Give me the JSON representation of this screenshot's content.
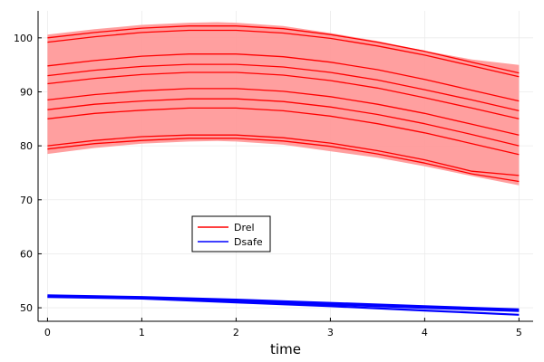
{
  "chart_data": {
    "type": "line",
    "title": "",
    "xlabel": "time",
    "ylabel": "",
    "xlim": [
      -0.1,
      5.15
    ],
    "ylim": [
      47.5,
      105
    ],
    "xticks": [
      0,
      1,
      2,
      3,
      4,
      5
    ],
    "yticks": [
      50,
      60,
      70,
      80,
      90,
      100
    ],
    "grid": true,
    "legend_position": "center-left",
    "band": {
      "name": "Drel",
      "color": "#ff9a9a",
      "x": [
        0,
        0.5,
        1,
        1.5,
        1.8,
        2,
        2.5,
        3,
        3.5,
        4,
        4.5,
        5
      ],
      "upper": [
        100.6,
        101.6,
        102.4,
        102.8,
        102.9,
        102.8,
        102.2,
        100.9,
        99.4,
        97.6,
        96.0,
        95.0
      ],
      "lower": [
        78.5,
        79.6,
        80.4,
        80.8,
        80.9,
        80.8,
        80.2,
        79.0,
        77.8,
        76.2,
        74.4,
        72.7
      ]
    },
    "series": [
      {
        "name": "Drel",
        "color": "#ff0000",
        "x": [
          0,
          0.5,
          1,
          1.5,
          2,
          2.5,
          3,
          3.5,
          4,
          4.5,
          5
        ],
        "lines": [
          [
            100.0,
            101.0,
            101.8,
            102.2,
            102.2,
            101.7,
            100.6,
            99.2,
            97.5,
            95.5,
            93.5
          ],
          [
            99.2,
            100.2,
            101.0,
            101.4,
            101.4,
            100.9,
            99.9,
            98.5,
            96.8,
            94.8,
            92.8
          ],
          [
            94.8,
            95.8,
            96.6,
            97.0,
            97.0,
            96.5,
            95.5,
            94.1,
            92.3,
            90.3,
            88.3
          ],
          [
            93.0,
            94.0,
            94.7,
            95.1,
            95.1,
            94.6,
            93.6,
            92.2,
            90.4,
            88.5,
            86.5
          ],
          [
            91.5,
            92.5,
            93.2,
            93.6,
            93.6,
            93.1,
            92.1,
            90.7,
            88.9,
            87.0,
            85.0
          ],
          [
            88.5,
            89.5,
            90.2,
            90.6,
            90.6,
            90.1,
            89.1,
            87.7,
            86.0,
            84.0,
            82.0
          ],
          [
            86.7,
            87.7,
            88.3,
            88.7,
            88.7,
            88.2,
            87.2,
            85.8,
            84.1,
            82.1,
            80.0
          ],
          [
            85.0,
            86.0,
            86.6,
            87.0,
            87.0,
            86.5,
            85.5,
            84.1,
            82.4,
            80.4,
            78.4
          ],
          [
            80.0,
            81.0,
            81.7,
            82.0,
            82.0,
            81.5,
            80.5,
            79.1,
            77.4,
            75.3,
            74.5
          ],
          [
            79.4,
            80.4,
            81.0,
            81.4,
            81.4,
            80.9,
            79.9,
            78.5,
            76.8,
            74.8,
            73.4
          ]
        ]
      },
      {
        "name": "Dsafe",
        "color": "#0000ff",
        "x": [
          0,
          1,
          2,
          3,
          4,
          5
        ],
        "lines": [
          [
            52.3,
            52.0,
            51.5,
            50.9,
            50.3,
            49.7
          ],
          [
            52.1,
            51.8,
            51.2,
            50.6,
            50.0,
            49.4
          ],
          [
            52.0,
            51.7,
            51.0,
            50.3,
            49.5,
            48.7
          ]
        ]
      }
    ]
  }
}
